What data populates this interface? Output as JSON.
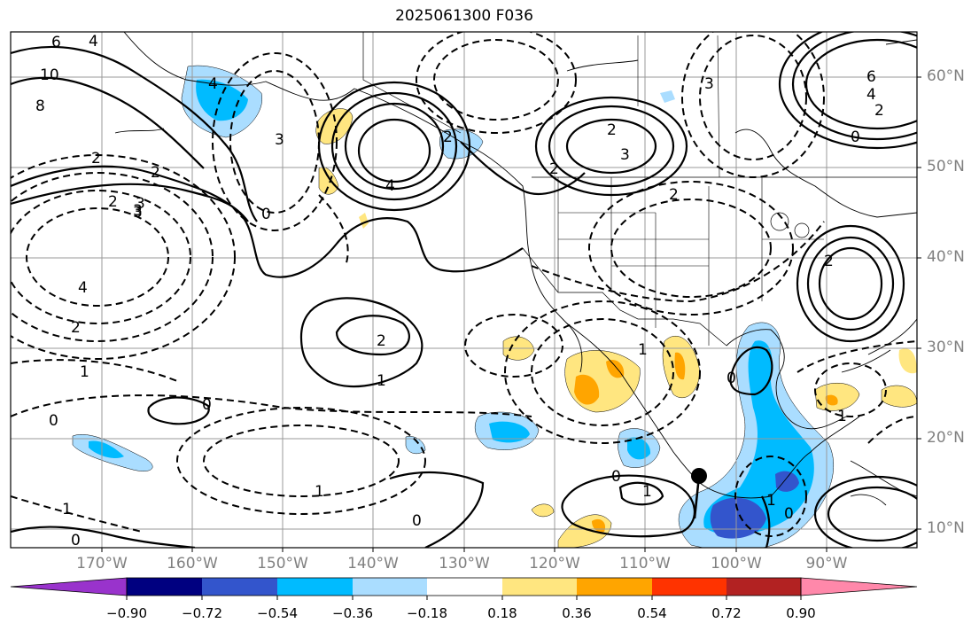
{
  "title": "2025061300 F036",
  "lat_labels": [
    "60°N",
    "50°N",
    "40°N",
    "30°N",
    "20°N",
    "10°N"
  ],
  "lon_labels": [
    "170°W",
    "160°W",
    "150°W",
    "140°W",
    "130°W",
    "120°W",
    "110°W",
    "100°W",
    "90°W"
  ],
  "colorbar": {
    "ticks": [
      "−0.90",
      "−0.72",
      "−0.54",
      "−0.36",
      "−0.18",
      "0.18",
      "0.36",
      "0.54",
      "0.72",
      "0.90"
    ],
    "colors": [
      "#9933cc",
      "#000080",
      "#3355cc",
      "#00bbff",
      "#aaddff",
      "#ffffff",
      "#ffe680",
      "#ffa500",
      "#ff3300",
      "#b22222",
      "#ff88aa"
    ]
  },
  "contour_labels": [
    "6",
    "4",
    "10",
    "8",
    "2",
    "3",
    "4",
    "0",
    "2",
    "4",
    "3",
    "2",
    "2",
    "3",
    "2",
    "4",
    "2",
    "1",
    "1",
    "0",
    "2",
    "3",
    "1",
    "1",
    "0",
    "0",
    "1",
    "0",
    "0",
    "6",
    "4",
    "2",
    "0",
    "2",
    "3",
    "2",
    "2",
    "3",
    "1",
    "0",
    "1",
    "0",
    "1"
  ]
}
